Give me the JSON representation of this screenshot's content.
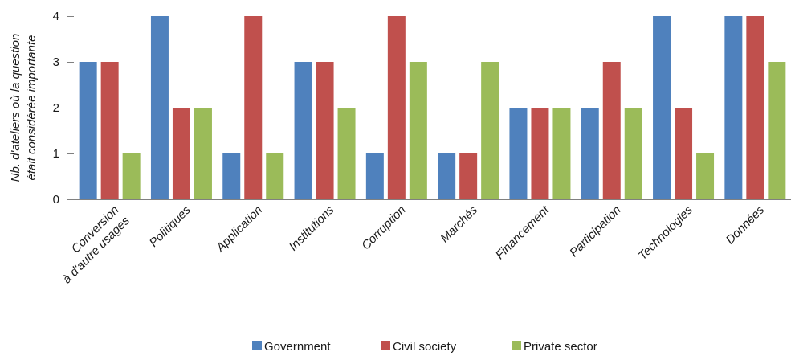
{
  "chart_data": {
    "type": "bar",
    "categories": [
      [
        "Conversion",
        "à d'autre usages"
      ],
      [
        "Politiques"
      ],
      [
        "Application"
      ],
      [
        "Institutions"
      ],
      [
        "Corruption"
      ],
      [
        "Marchés"
      ],
      [
        "Financement"
      ],
      [
        "Participation"
      ],
      [
        "Technologies"
      ],
      [
        "Données"
      ]
    ],
    "series": [
      {
        "name": "Government",
        "color": "#4f81bd",
        "values": [
          3,
          4,
          1,
          3,
          1,
          1,
          2,
          2,
          4,
          4
        ]
      },
      {
        "name": "Civil society",
        "color": "#c0504d",
        "values": [
          3,
          2,
          4,
          3,
          4,
          1,
          2,
          3,
          2,
          4
        ]
      },
      {
        "name": "Private sector",
        "color": "#9bbb59",
        "values": [
          1,
          2,
          1,
          2,
          3,
          3,
          2,
          2,
          1,
          3
        ]
      }
    ],
    "ylabel": [
      "Nb. d'ateliers où la question",
      "était considérée importante"
    ],
    "xlabel": "",
    "ylim": [
      0,
      4
    ],
    "yticks": [
      "0",
      "1",
      "2",
      "3",
      "4"
    ],
    "grid": false,
    "legend_position": "bottom"
  }
}
